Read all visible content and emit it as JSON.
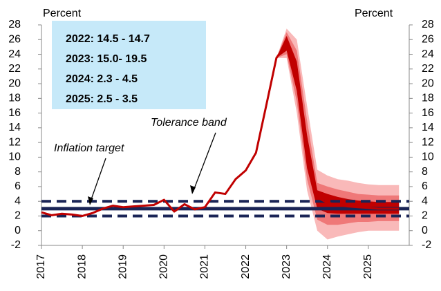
{
  "chart_data": {
    "type": "line",
    "ylabel": "Percent",
    "y2label": "Percent",
    "ylim": [
      -2,
      28
    ],
    "yticks": [
      -2,
      0,
      2,
      4,
      6,
      8,
      10,
      12,
      14,
      16,
      18,
      20,
      22,
      24,
      26,
      28
    ],
    "y2lim": [
      -2,
      28
    ],
    "y2ticks": [
      -2,
      0,
      2,
      4,
      6,
      8,
      10,
      12,
      14,
      16,
      18,
      20,
      22,
      24,
      26,
      28
    ],
    "xlim": [
      2017,
      2026
    ],
    "xticks": [
      2017,
      2018,
      2019,
      2020,
      2021,
      2022,
      2023,
      2024,
      2025
    ],
    "x": [
      2017,
      2017.25,
      2017.5,
      2017.75,
      2018,
      2018.25,
      2018.5,
      2018.75,
      2019,
      2019.25,
      2019.5,
      2019.75,
      2020,
      2020.25,
      2020.5,
      2020.75,
      2021,
      2021.25,
      2021.5,
      2021.75,
      2022,
      2022.25,
      2022.5,
      2022.75,
      2023,
      2023.25,
      2023.5,
      2023.75,
      2024,
      2024.25,
      2024.5,
      2024.75,
      2025,
      2025.25,
      2025.5,
      2025.75
    ],
    "series": [
      {
        "color": "#c00000",
        "values": [
          2.5,
          2.1,
          2.3,
          2.2,
          2.0,
          2.4,
          3.0,
          3.4,
          3.2,
          3.3,
          3.4,
          3.5,
          4.2,
          2.6,
          3.6,
          2.9,
          3.2,
          5.2,
          5.0,
          7.0,
          8.2,
          10.6,
          17.0,
          23.5,
          25.5,
          20.5,
          11.0,
          4.5,
          3.8,
          3.5,
          3.3,
          3.2,
          3.1,
          3.0,
          3.0,
          3.0
        ]
      }
    ],
    "fan": {
      "x": [
        2022.75,
        2023,
        2023.25,
        2023.5,
        2023.75,
        2024,
        2024.25,
        2024.5,
        2024.75,
        2025,
        2025.25,
        2025.5,
        2025.75
      ],
      "bands": [
        {
          "color": "#f9b9b9",
          "lower": [
            23.5,
            23.5,
            16,
            5.5,
            0,
            -1.2,
            -0.8,
            -0.5,
            -0.2,
            0,
            0,
            0,
            0
          ],
          "upper": [
            23.5,
            27.5,
            26,
            17,
            8.3,
            7.5,
            7,
            6.8,
            6.5,
            6.3,
            6.2,
            6.2,
            6.2
          ]
        },
        {
          "color": "#ef7878",
          "lower": [
            23.5,
            24,
            17.5,
            7,
            1.5,
            0.8,
            0.8,
            1,
            1.2,
            1.2,
            1.3,
            1.3,
            1.3
          ],
          "upper": [
            23.5,
            27,
            24.5,
            15,
            6.5,
            6,
            5.6,
            5.3,
            5,
            4.9,
            4.8,
            4.8,
            4.8
          ]
        },
        {
          "color": "#c00000",
          "lower": [
            23.5,
            24.5,
            19,
            8.5,
            3,
            2.4,
            2.3,
            2.3,
            2.3,
            2.3,
            2.3,
            2.3,
            2.3
          ],
          "upper": [
            23.5,
            26.5,
            23,
            13,
            5.5,
            5,
            4.6,
            4.3,
            4.1,
            4,
            3.9,
            3.9,
            3.9
          ]
        }
      ]
    },
    "reference_lines": [
      {
        "value": 3,
        "style": "solid",
        "color": "#1a2456"
      },
      {
        "value": 2,
        "style": "dashed",
        "color": "#1a2456"
      },
      {
        "value": 4,
        "style": "dashed",
        "color": "#1a2456"
      }
    ],
    "annotations": [
      "Inflation target",
      "Tolerance band"
    ],
    "textbox": {
      "color": "#c6e9f9",
      "lines": [
        "2022: 14.5 - 14.7",
        "2023: 15.0- 19.5",
        "2024: 2.3 - 4.5",
        "2025: 2.5 - 3.5"
      ]
    }
  }
}
